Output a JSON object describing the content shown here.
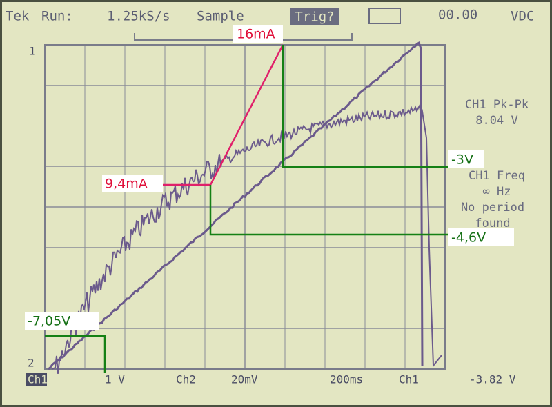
{
  "header": {
    "brand": "Tek",
    "state": "Run:",
    "rate": "1.25kS/s",
    "mode": "Sample",
    "trigger": "Trig?",
    "readout": "00.00",
    "readout_unit": "VDC"
  },
  "markers": [
    "1",
    "2"
  ],
  "annotations": [
    {
      "label": "16mA"
    },
    {
      "label": "9,4mA"
    },
    {
      "label": "-3V"
    },
    {
      "label": "-4,6V"
    },
    {
      "label": "-7,05V"
    }
  ],
  "measurements": [
    {
      "name": "CH1 Pk-Pk",
      "value": "8.04 V"
    },
    {
      "name": "CH1 Freq",
      "value": "∞ Hz",
      "note": [
        "No period",
        "found"
      ]
    }
  ],
  "footer": {
    "ch1_label": "Ch1",
    "ch1_scale": "1 V",
    "ch2_label": "Ch2",
    "ch2_scale": "20mV",
    "timebase": "200ms",
    "trigger_source": "Ch1",
    "trigger_level": "-3.82 V"
  }
}
